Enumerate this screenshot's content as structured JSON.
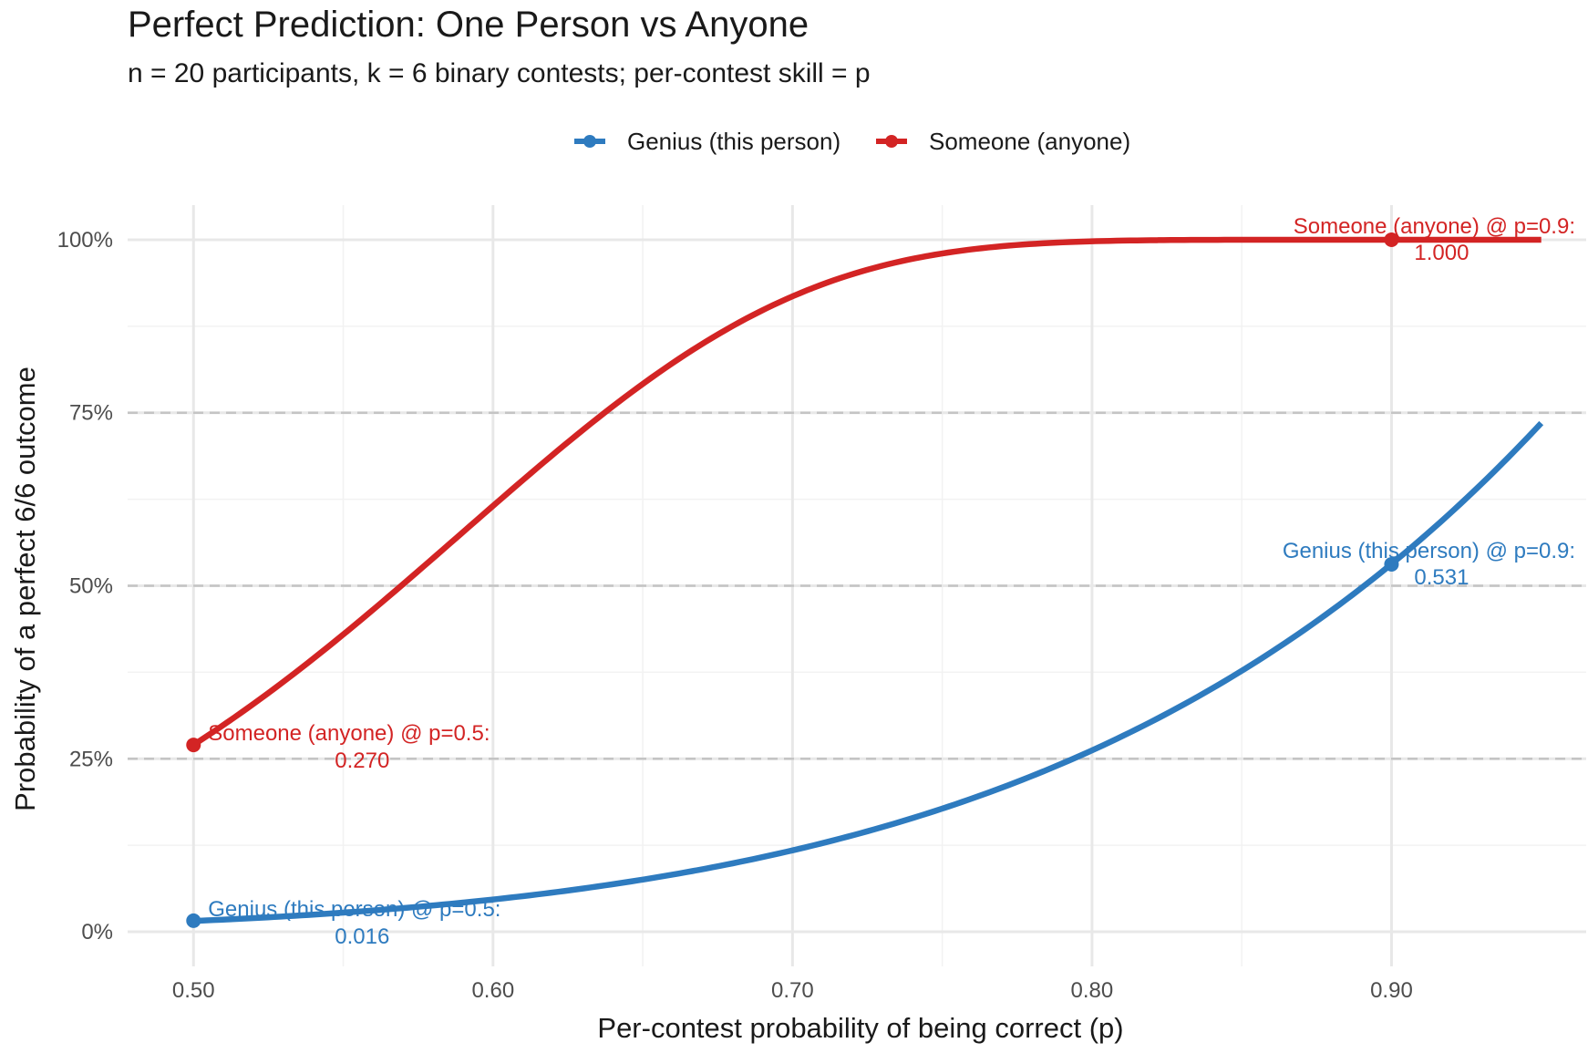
{
  "chart_data": {
    "type": "line",
    "title": "Perfect Prediction: One Person vs Anyone",
    "subtitle": "n = 20 participants, k = 6 binary contests; per-contest skill = p",
    "xlabel": "Per-contest probability of being correct (p)",
    "ylabel": "Probability of a perfect 6/6 outcome",
    "xlim": [
      0.478,
      0.965
    ],
    "ylim": [
      -0.05,
      1.05
    ],
    "x_ticks": [
      0.5,
      0.6,
      0.7,
      0.8,
      0.9
    ],
    "x_tick_labels": [
      "0.50",
      "0.60",
      "0.70",
      "0.80",
      "0.90"
    ],
    "y_ticks": [
      0,
      0.25,
      0.5,
      0.75,
      1.0
    ],
    "y_tick_labels": [
      "0%",
      "25%",
      "50%",
      "75%",
      "100%"
    ],
    "dashed_hlines": [
      0.25,
      0.5,
      0.75
    ],
    "grid": true,
    "legend_position": "top",
    "n_participants": 20,
    "k_contests": 6,
    "series": [
      {
        "name": "Genius (this person)",
        "color": "#2e7bbf",
        "x": [
          0.5,
          0.55,
          0.6,
          0.65,
          0.7,
          0.75,
          0.8,
          0.85,
          0.9,
          0.95
        ],
        "y": [
          0.016,
          0.028,
          0.047,
          0.075,
          0.118,
          0.178,
          0.262,
          0.377,
          0.531,
          0.735
        ],
        "marker": {
          "x": 0.9,
          "y": 0.531
        },
        "start_marker": {
          "x": 0.5,
          "y": 0.016
        }
      },
      {
        "name": "Someone (anyone)",
        "color": "#d32424",
        "x": [
          0.5,
          0.55,
          0.6,
          0.65,
          0.7,
          0.75,
          0.8,
          0.85,
          0.9,
          0.95
        ],
        "y": [
          0.27,
          0.432,
          0.619,
          0.791,
          0.918,
          0.981,
          0.998,
          1.0,
          1.0,
          1.0
        ],
        "marker": {
          "x": 0.9,
          "y": 1.0
        },
        "start_marker": {
          "x": 0.5,
          "y": 0.27
        }
      }
    ],
    "annotations": [
      {
        "series": 0,
        "line1": "Genius (this person) @ p=0.5:",
        "line2": "0.016",
        "x": 0.5,
        "y": 0.016,
        "color": "#2e7bbf",
        "side": "right"
      },
      {
        "series": 0,
        "line1": "Genius (this person) @ p=0.9:",
        "line2": "0.531",
        "x": 0.9,
        "y": 0.531,
        "color": "#2e7bbf",
        "side": "left"
      },
      {
        "series": 1,
        "line1": "Someone (anyone) @ p=0.5:",
        "line2": "0.270",
        "x": 0.5,
        "y": 0.27,
        "color": "#d32424",
        "side": "right"
      },
      {
        "series": 1,
        "line1": "Someone (anyone) @ p=0.9:",
        "line2": "1.000",
        "x": 0.9,
        "y": 1.0,
        "color": "#d32424",
        "side": "left"
      }
    ]
  }
}
